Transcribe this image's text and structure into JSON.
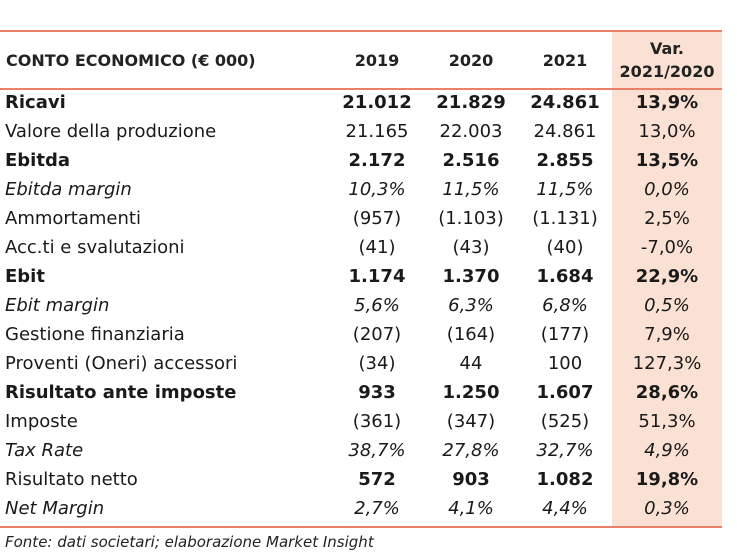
{
  "header": {
    "label": "CONTO ECONOMICO (€ 000)",
    "y2019": "2019",
    "y2020": "2020",
    "y2021": "2021",
    "var_line1": "Var.",
    "var_line2": "2021/2020"
  },
  "rows": [
    {
      "label": "Ricavi",
      "y2019": "21.012",
      "y2020": "21.829",
      "y2021": "24.861",
      "var": "13,9%",
      "style": "bold"
    },
    {
      "label": "Valore della produzione",
      "y2019": "21.165",
      "y2020": "22.003",
      "y2021": "24.861",
      "var": "13,0%",
      "style": "normal"
    },
    {
      "label": "Ebitda",
      "y2019": "2.172",
      "y2020": "2.516",
      "y2021": "2.855",
      "var": "13,5%",
      "style": "bold"
    },
    {
      "label": "Ebitda margin",
      "y2019": "10,3%",
      "y2020": "11,5%",
      "y2021": "11,5%",
      "var": "0,0%",
      "style": "italic"
    },
    {
      "label": "Ammortamenti",
      "y2019": "(957)",
      "y2020": "(1.103)",
      "y2021": "(1.131)",
      "var": "2,5%",
      "style": "normal"
    },
    {
      "label": "Acc.ti e svalutazioni",
      "y2019": "(41)",
      "y2020": "(43)",
      "y2021": "(40)",
      "var": "-7,0%",
      "style": "normal"
    },
    {
      "label": "Ebit",
      "y2019": "1.174",
      "y2020": "1.370",
      "y2021": "1.684",
      "var": "22,9%",
      "style": "bold"
    },
    {
      "label": "Ebit margin",
      "y2019": "5,6%",
      "y2020": "6,3%",
      "y2021": "6,8%",
      "var": "0,5%",
      "style": "italic"
    },
    {
      "label": "Gestione finanziaria",
      "y2019": "(207)",
      "y2020": "(164)",
      "y2021": "(177)",
      "var": "7,9%",
      "style": "normal"
    },
    {
      "label": "Proventi (Oneri) accessori",
      "y2019": "(34)",
      "y2020": "44",
      "y2021": "100",
      "var": "127,3%",
      "style": "normal"
    },
    {
      "label": "Risultato ante imposte",
      "y2019": "933",
      "y2020": "1.250",
      "y2021": "1.607",
      "var": "28,6%",
      "style": "bold"
    },
    {
      "label": "Imposte",
      "y2019": "(361)",
      "y2020": "(347)",
      "y2021": "(525)",
      "var": "51,3%",
      "style": "normal"
    },
    {
      "label": "Tax Rate",
      "y2019": "38,7%",
      "y2020": "27,8%",
      "y2021": "32,7%",
      "var": "4,9%",
      "style": "italic"
    },
    {
      "label": "Risultato netto",
      "y2019": "572",
      "y2020": "903",
      "y2021": "1.082",
      "var": "19,8%",
      "style": "mixed-bold"
    },
    {
      "label": "Net Margin",
      "y2019": "2,7%",
      "y2020": "4,1%",
      "y2021": "4,4%",
      "var": "0,3%",
      "style": "italic"
    }
  ],
  "footnote": "Fonte: dati societari; elaborazione Market Insight",
  "colors": {
    "rule": "#e8806a",
    "highlight_column": "#fbe1d3"
  }
}
